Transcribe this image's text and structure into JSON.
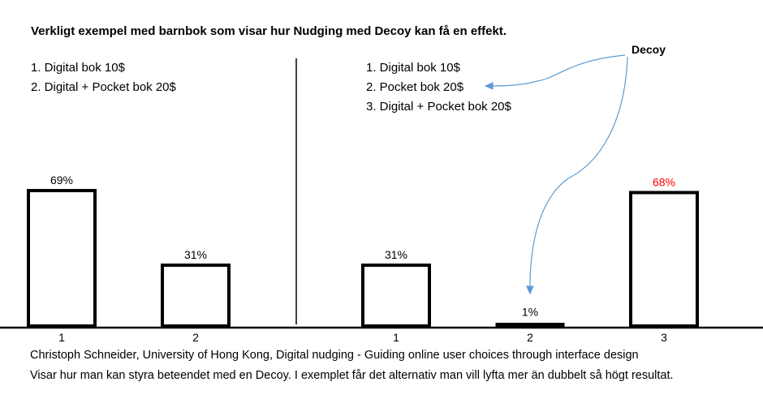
{
  "title": "Verkligt exempel med barnbok som visar hur Nudging med Decoy kan få en effekt.",
  "left_options": [
    "1. Digital bok 10$",
    "2. Digital + Pocket bok 20$"
  ],
  "right_options": [
    "1. Digital bok 10$",
    "2. Pocket bok 20$",
    "3. Digital + Pocket bok 20$"
  ],
  "decoy_label": "Decoy",
  "caption_line1": "Christoph Schneider, University of Hong Kong, Digital nudging - Guiding online user choices through interface design",
  "caption_line2": "Visar hur man kan styra beteendet med en Decoy. I exemplet får det alternativ man vill lyfta mer än dubbelt så högt resultat.",
  "colors": {
    "highlight": "#ff0000",
    "arrow": "#5b9bd5",
    "bar_stroke": "#000000"
  },
  "chart_data": [
    {
      "type": "bar",
      "categories": [
        "1",
        "2"
      ],
      "values": [
        69,
        31
      ],
      "value_labels": [
        "69%",
        "31%"
      ],
      "ylim": [
        0,
        100
      ]
    },
    {
      "type": "bar",
      "categories": [
        "1",
        "2",
        "3"
      ],
      "values": [
        31,
        1,
        68
      ],
      "value_labels": [
        "31%",
        "1%",
        "68%"
      ],
      "highlight_index": 2,
      "ylim": [
        0,
        100
      ]
    }
  ]
}
